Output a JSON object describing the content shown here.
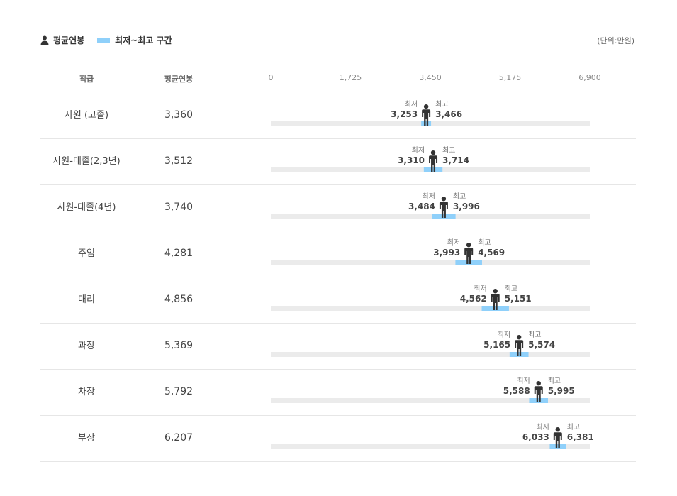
{
  "legend": {
    "avg_label": "평균연봉",
    "range_label": "최저~최고 구간"
  },
  "unit_label": "(단위:만원)",
  "header": {
    "grade": "직급",
    "avg": "평균연봉"
  },
  "colors": {
    "track": "#ebebeb",
    "range": "#8fd0fa",
    "person": "#333333"
  },
  "labels": {
    "min": "최저",
    "max": "최고"
  },
  "chart_data": {
    "type": "bar",
    "xlim": [
      0,
      6900
    ],
    "ticks": [
      "0",
      "1,725",
      "3,450",
      "5,175",
      "6,900"
    ],
    "tick_values": [
      0,
      1725,
      3450,
      5175,
      6900
    ],
    "categories": [
      "사원 (고졸)",
      "사원-대졸(2,3년)",
      "사원-대졸(4년)",
      "주임",
      "대리",
      "과장",
      "차장",
      "부장"
    ],
    "avg": [
      3360,
      3512,
      3740,
      4281,
      4856,
      5369,
      5792,
      6207
    ],
    "avg_text": [
      "3,360",
      "3,512",
      "3,740",
      "4,281",
      "4,856",
      "5,369",
      "5,792",
      "6,207"
    ],
    "min": [
      3253,
      3310,
      3484,
      3993,
      4562,
      5165,
      5588,
      6033
    ],
    "min_text": [
      "3,253",
      "3,310",
      "3,484",
      "3,993",
      "4,562",
      "5,165",
      "5,588",
      "6,033"
    ],
    "max": [
      3466,
      3714,
      3996,
      4569,
      5151,
      5574,
      5995,
      6381
    ],
    "max_text": [
      "3,466",
      "3,714",
      "3,996",
      "4,569",
      "5,151",
      "5,574",
      "5,995",
      "6,381"
    ]
  }
}
